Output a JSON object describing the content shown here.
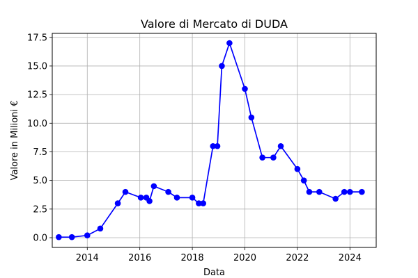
{
  "chart_data": {
    "type": "line",
    "title": "Valore di Mercato di DUDA",
    "xlabel": "Data",
    "ylabel": "Valore in Milioni €",
    "x_ticks": [
      "2014",
      "2016",
      "2018",
      "2020",
      "2022",
      "2024"
    ],
    "y_ticks": [
      "0.0",
      "2.5",
      "5.0",
      "7.5",
      "10.0",
      "12.5",
      "15.0",
      "17.5"
    ],
    "xlim": [
      "2012-09-01",
      "2025-01-01"
    ],
    "ylim": [
      -0.85,
      17.85
    ],
    "grid": true,
    "series": [
      {
        "color": "#0000ff",
        "marker": "circle",
        "x": [
          "2012-12-01",
          "2013-06-01",
          "2014-01-01",
          "2014-07-01",
          "2015-03-01",
          "2015-06-15",
          "2016-01-15",
          "2016-04-01",
          "2016-05-15",
          "2016-07-15",
          "2017-02-01",
          "2017-06-01",
          "2018-01-01",
          "2018-04-01",
          "2018-06-01",
          "2018-10-15",
          "2018-12-15",
          "2019-02-15",
          "2019-06-01",
          "2020-01-01",
          "2020-04-01",
          "2020-09-01",
          "2021-02-01",
          "2021-05-15",
          "2022-01-01",
          "2022-04-01",
          "2022-06-15",
          "2022-11-01",
          "2023-06-15",
          "2023-10-15",
          "2024-01-01",
          "2024-06-15"
        ],
        "y": [
          0.05,
          0.05,
          0.2,
          0.8,
          3.0,
          4.0,
          3.5,
          3.5,
          3.2,
          4.5,
          4.0,
          3.5,
          3.5,
          3.0,
          3.0,
          8.0,
          8.0,
          15.0,
          17.0,
          13.0,
          10.5,
          7.0,
          7.0,
          8.0,
          6.0,
          5.0,
          4.0,
          4.0,
          3.4,
          4.0,
          4.0,
          4.0
        ]
      }
    ]
  }
}
